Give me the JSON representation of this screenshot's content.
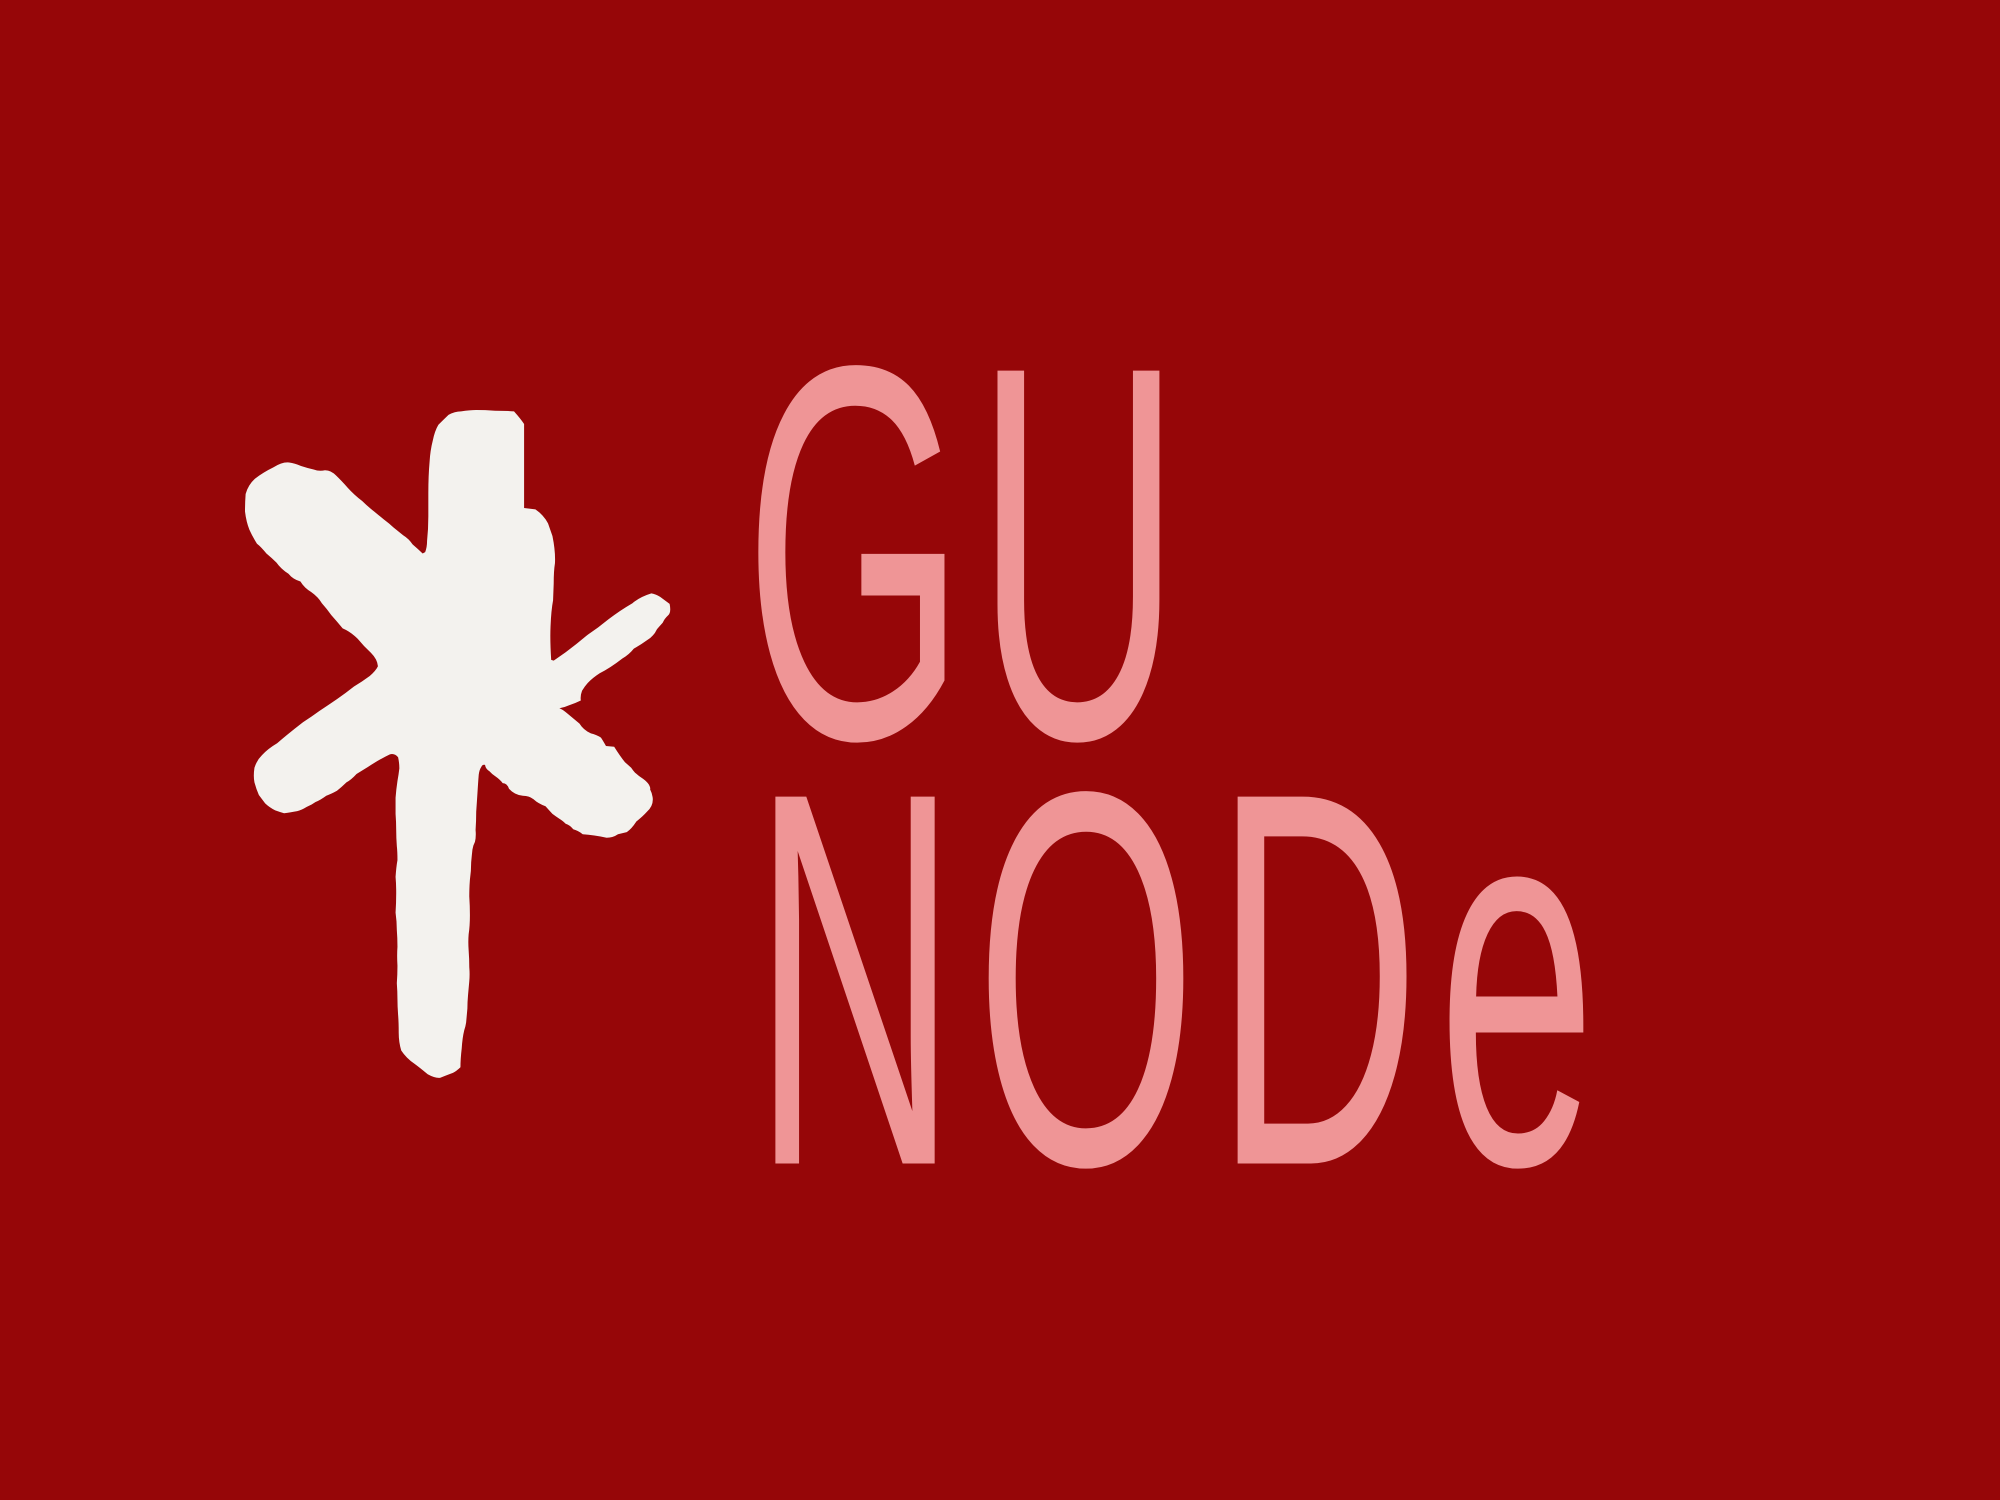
{
  "brand": {
    "line1": "GU",
    "line2": "NODe"
  },
  "colors": {
    "background": "#960608",
    "text": "#ef9596",
    "mark": "#f3f2ee"
  },
  "icon": "asterisk-icon"
}
